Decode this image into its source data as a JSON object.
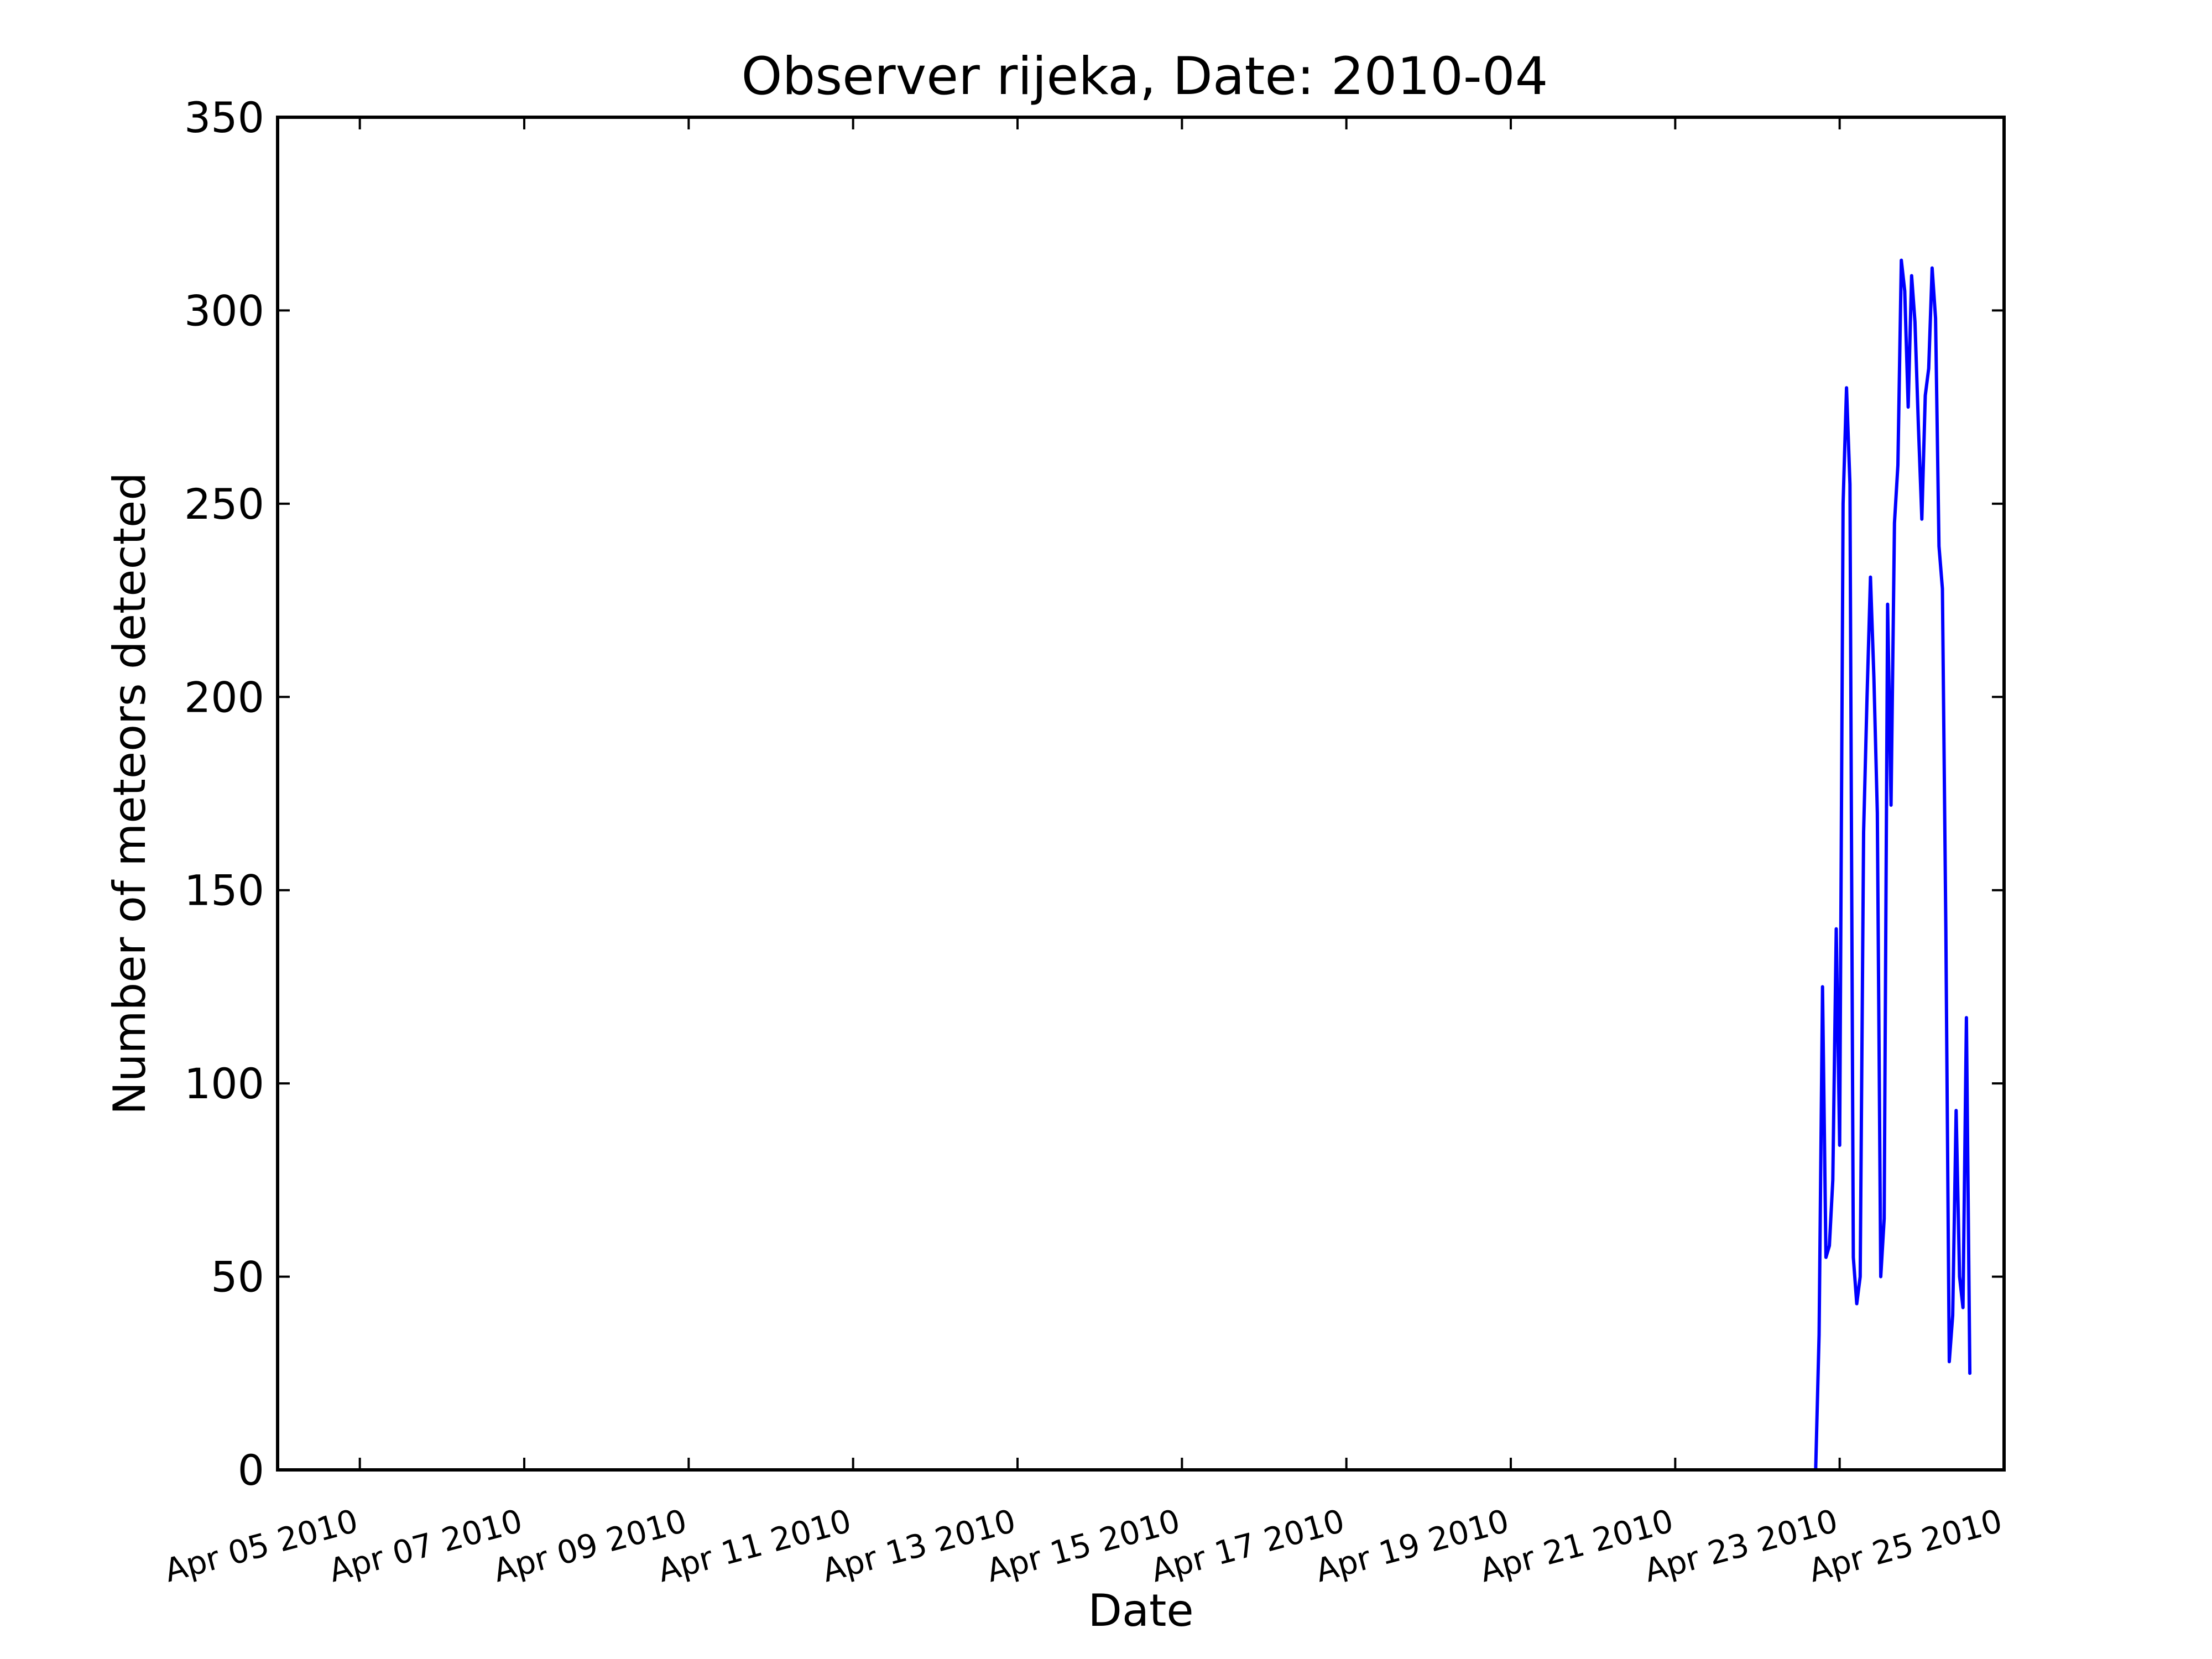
{
  "chart_data": {
    "type": "line",
    "title": "Observer rijeka, Date: 2010-04",
    "xlabel": "Date",
    "ylabel": "Number of meteors detected",
    "xlim": [
      "2010-04-04",
      "2010-04-25"
    ],
    "ylim": [
      0,
      350
    ],
    "grid": false,
    "x_ticks": [
      "2010-04-05",
      "2010-04-07",
      "2010-04-09",
      "2010-04-11",
      "2010-04-13",
      "2010-04-15",
      "2010-04-17",
      "2010-04-19",
      "2010-04-21",
      "2010-04-23",
      "2010-04-25"
    ],
    "x_tick_labels": [
      "Apr 05 2010",
      "Apr 07 2010",
      "Apr 09 2010",
      "Apr 11 2010",
      "Apr 13 2010",
      "Apr 15 2010",
      "Apr 17 2010",
      "Apr 19 2010",
      "Apr 21 2010",
      "Apr 23 2010",
      "Apr 25 2010"
    ],
    "y_ticks": [
      0,
      50,
      100,
      150,
      200,
      250,
      300,
      350
    ],
    "y_tick_labels": [
      "0",
      "50",
      "100",
      "150",
      "200",
      "250",
      "300",
      "350"
    ],
    "series": [
      {
        "color": "#0000ff",
        "x": [
          "2010-04-22 17:00",
          "2010-04-22 18:00",
          "2010-04-22 19:00",
          "2010-04-22 20:00",
          "2010-04-22 21:00",
          "2010-04-22 22:00",
          "2010-04-22 23:00",
          "2010-04-23 00:00",
          "2010-04-23 01:00",
          "2010-04-23 02:00",
          "2010-04-23 03:00",
          "2010-04-23 04:00",
          "2010-04-23 05:00",
          "2010-04-23 06:00",
          "2010-04-23 07:00",
          "2010-04-23 08:00",
          "2010-04-23 09:00",
          "2010-04-23 10:00",
          "2010-04-23 11:00",
          "2010-04-23 12:00",
          "2010-04-23 13:00",
          "2010-04-23 14:00",
          "2010-04-23 15:00",
          "2010-04-23 16:00",
          "2010-04-23 17:00",
          "2010-04-23 18:00",
          "2010-04-23 19:00",
          "2010-04-23 20:00",
          "2010-04-23 21:00",
          "2010-04-23 22:00",
          "2010-04-23 23:00",
          "2010-04-24 00:00",
          "2010-04-24 01:00",
          "2010-04-24 02:00",
          "2010-04-24 03:00",
          "2010-04-24 04:00",
          "2010-04-24 05:00",
          "2010-04-24 06:00",
          "2010-04-24 07:00",
          "2010-04-24 08:00",
          "2010-04-24 09:00",
          "2010-04-24 10:00",
          "2010-04-24 11:00",
          "2010-04-24 12:00",
          "2010-04-24 13:00",
          "2010-04-24 14:00"
        ],
        "y": [
          0,
          35,
          125,
          55,
          58,
          75,
          140,
          84,
          250,
          280,
          255,
          55,
          43,
          50,
          165,
          200,
          231,
          205,
          170,
          50,
          65,
          224,
          172,
          245,
          260,
          313,
          305,
          275,
          309,
          297,
          270,
          246,
          278,
          285,
          311,
          298,
          239,
          228,
          140,
          28,
          40,
          93,
          50,
          42,
          117,
          25
        ]
      }
    ]
  }
}
